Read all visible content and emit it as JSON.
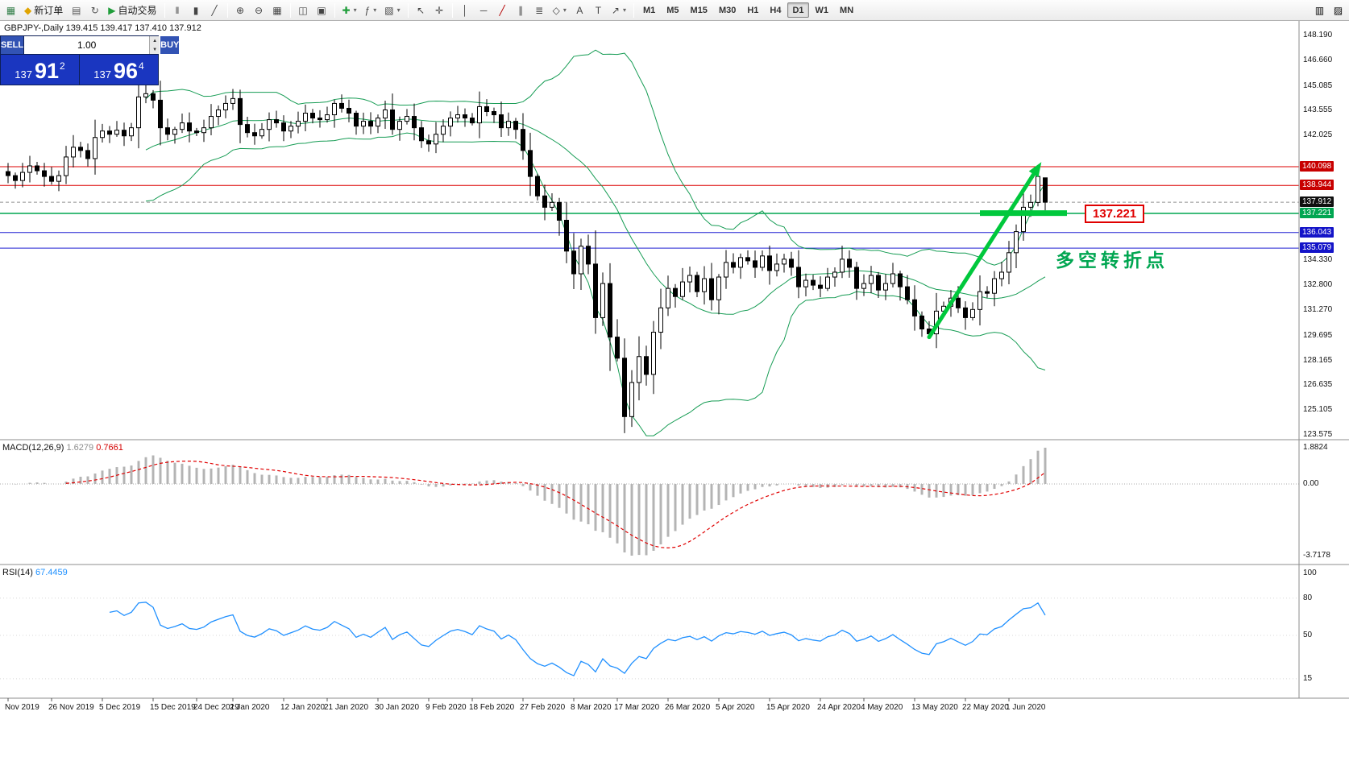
{
  "toolbar": {
    "items": [
      {
        "name": "new-chart",
        "glyph": "▦",
        "color": "#2f7d46"
      },
      {
        "name": "new-order",
        "glyph": "◆",
        "color": "#e0a400",
        "label": "新订单"
      },
      {
        "name": "profiles",
        "glyph": "▤",
        "color": "#555555"
      },
      {
        "name": "refresh",
        "glyph": "↻",
        "color": "#555555"
      },
      {
        "name": "autotrading",
        "glyph": "▶",
        "color": "#1f9d3a",
        "label": "自动交易"
      },
      {
        "sep": true
      },
      {
        "name": "bar-chart",
        "glyph": "‖",
        "color": "#444444"
      },
      {
        "name": "candlestick-chart",
        "glyph": "▮",
        "color": "#444444"
      },
      {
        "name": "line-chart",
        "glyph": "╱",
        "color": "#444444"
      },
      {
        "sep": true
      },
      {
        "name": "zoom-in",
        "glyph": "⊕",
        "color": "#444444"
      },
      {
        "name": "zoom-out",
        "glyph": "⊖",
        "color": "#444444"
      },
      {
        "name": "grid",
        "glyph": "▦",
        "color": "#444444"
      },
      {
        "sep": true
      },
      {
        "name": "tile-windows",
        "glyph": "◫",
        "color": "#444444"
      },
      {
        "name": "cascade-windows",
        "glyph": "▣",
        "color": "#444444"
      },
      {
        "sep": true
      },
      {
        "name": "quick-order",
        "glyph": "✚",
        "color": "#1f9d3a",
        "dropdown": true
      },
      {
        "name": "indicators",
        "glyph": "ƒ",
        "color": "#444444",
        "dropdown": true
      },
      {
        "name": "templates",
        "glyph": "▧",
        "color": "#444444",
        "dropdown": true
      },
      {
        "sep": true
      },
      {
        "name": "cursor",
        "glyph": "↖",
        "color": "#444444"
      },
      {
        "name": "crosshair",
        "glyph": "✛",
        "color": "#444444"
      },
      {
        "sep": true
      },
      {
        "name": "vertical-line",
        "glyph": "│",
        "color": "#444444"
      },
      {
        "name": "horizontal-line",
        "glyph": "─",
        "color": "#444444"
      },
      {
        "name": "trendline",
        "glyph": "╱",
        "color": "#b40000"
      },
      {
        "name": "equidistant-channel",
        "glyph": "∥",
        "color": "#444444"
      },
      {
        "name": "fibonacci",
        "glyph": "≣",
        "color": "#444444"
      },
      {
        "name": "shapes",
        "glyph": "◇",
        "color": "#444444",
        "dropdown": true
      },
      {
        "name": "text",
        "glyph": "A",
        "color": "#444444"
      },
      {
        "name": "text-label",
        "glyph": "T",
        "color": "#444444"
      },
      {
        "name": "arrows",
        "glyph": "↗",
        "color": "#444444",
        "dropdown": true
      },
      {
        "sep": true
      }
    ],
    "timeframes": [
      {
        "label": "M1"
      },
      {
        "label": "M5"
      },
      {
        "label": "M15"
      },
      {
        "label": "M30"
      },
      {
        "label": "H1"
      },
      {
        "label": "H4"
      },
      {
        "label": "D1",
        "active": true
      },
      {
        "label": "W1"
      },
      {
        "label": "MN"
      }
    ],
    "right_items": [
      {
        "name": "dock-left",
        "glyph": "▥"
      },
      {
        "name": "dock-right",
        "glyph": "▨"
      }
    ]
  },
  "chart": {
    "title": "GBPJPY-,Daily 139.415 139.417 137.410 137.912",
    "trade_panel": {
      "sell_label": "SELL",
      "buy_label": "BUY",
      "volume": "1.00",
      "sell_price": {
        "big": "137",
        "large": "91",
        "sup": "2"
      },
      "buy_price": {
        "big": "137",
        "large": "96",
        "sup": "4"
      }
    },
    "annotations": {
      "callout": "137.221",
      "turning_point": "多空转折点"
    }
  },
  "chart_data": {
    "type": "candlestick",
    "symbol": "GBPJPY-",
    "timeframe": "Daily",
    "last_bar": {
      "open": 139.415,
      "high": 139.417,
      "low": 137.41,
      "close": 137.912
    },
    "price_axis_labels": [
      "148.190",
      "146.660",
      "145.085",
      "143.555",
      "142.025",
      "134.330",
      "132.800",
      "131.270",
      "129.695",
      "128.165",
      "126.635",
      "125.105",
      "123.575"
    ],
    "price_tags": [
      {
        "price": 140.098,
        "text": "140.098",
        "color": "#c80000"
      },
      {
        "price": 138.944,
        "text": "138.944",
        "color": "#c80000"
      },
      {
        "price": 137.912,
        "text": "137.912",
        "color": "#101010"
      },
      {
        "price": 137.221,
        "text": "137.221",
        "color": "#00a651"
      },
      {
        "price": 136.043,
        "text": "136.043",
        "color": "#1414c8"
      },
      {
        "price": 135.079,
        "text": "135.079",
        "color": "#1414c8"
      }
    ],
    "hlines": [
      {
        "price": 140.098,
        "color": "#dc0000",
        "width": 1
      },
      {
        "price": 138.944,
        "color": "#dc0000",
        "width": 1
      },
      {
        "price": 137.221,
        "color": "#00a651",
        "width": 1.5
      },
      {
        "price": 136.043,
        "color": "#1e1ed2",
        "width": 1
      },
      {
        "price": 135.079,
        "color": "#1e1ed2",
        "width": 1
      }
    ],
    "current_price_line": {
      "price": 137.912,
      "color": "#909090"
    },
    "bollinger": {
      "period": 20,
      "deviation": 2,
      "color": "#169c54"
    },
    "candles": {
      "first_open": 139.8,
      "closes": [
        139.55,
        139.25,
        139.75,
        140.15,
        139.85,
        139.5,
        139.2,
        139.55,
        140.7,
        141.3,
        141.1,
        140.6,
        141.9,
        142.3,
        142.1,
        142.35,
        142.0,
        142.5,
        144.4,
        144.6,
        144.2,
        142.5,
        142.1,
        142.4,
        142.8,
        142.3,
        142.2,
        142.5,
        143.2,
        143.6,
        144.0,
        144.3,
        142.7,
        142.2,
        142.0,
        142.4,
        143.0,
        142.8,
        142.3,
        142.6,
        142.9,
        143.4,
        143.1,
        143.0,
        143.3,
        144.0,
        143.7,
        143.4,
        142.6,
        142.9,
        142.6,
        143.1,
        143.6,
        142.4,
        142.9,
        143.2,
        142.5,
        141.7,
        141.5,
        142.1,
        142.6,
        143.1,
        143.3,
        143.1,
        142.8,
        143.8,
        143.5,
        143.3,
        142.5,
        142.9,
        142.4,
        141.1,
        139.5,
        138.3,
        137.6,
        137.9,
        136.8,
        134.9,
        133.5,
        135.2,
        134.1,
        130.8,
        132.9,
        129.6,
        128.3,
        124.7,
        126.8,
        128.4,
        127.3,
        129.9,
        131.4,
        132.6,
        132.1,
        133.0,
        133.4,
        132.4,
        133.2,
        131.9,
        133.3,
        134.2,
        133.9,
        134.5,
        134.3,
        133.9,
        134.6,
        133.7,
        134.1,
        134.4,
        133.9,
        132.7,
        133.1,
        132.8,
        132.6,
        133.3,
        133.6,
        134.4,
        133.9,
        132.6,
        132.9,
        133.4,
        132.5,
        132.9,
        133.5,
        132.7,
        131.9,
        130.9,
        130.1,
        129.8,
        131.2,
        131.5,
        132.0,
        131.4,
        130.8,
        131.3,
        132.4,
        132.3,
        133.2,
        133.6,
        134.8,
        136.1,
        137.6,
        137.9,
        139.5,
        137.912
      ],
      "overrides": {
        "18": {
          "h": 145.6
        },
        "19": {
          "h": 147.9
        },
        "81": {
          "l": 129.8
        },
        "85": {
          "l": 123.68
        },
        "127": {
          "l": 129.55
        },
        "142": {
          "h": 140.1
        },
        "143": {
          "o": 139.415,
          "h": 139.417,
          "l": 137.41,
          "c": 137.912
        }
      }
    },
    "trend_arrow": {
      "from_index": 127,
      "from_price": 129.6,
      "to_index": 142,
      "to_price": 140.05,
      "color": "#00c83c"
    },
    "support_bar": {
      "from_index": 134,
      "to_index": 146,
      "price": 137.24,
      "color": "#00c83c"
    },
    "macd": {
      "label": "MACD(12,26,9)",
      "value_main": "1.6279",
      "value_signal": "0.7661",
      "bar_color": "#b4b4b4",
      "signal_color": "#e00000",
      "axis": [
        {
          "v": 1.8824,
          "t": "1.8824"
        },
        {
          "v": 0,
          "t": "0.00"
        },
        {
          "v": -3.7178,
          "t": "-3.7178"
        }
      ]
    },
    "rsi": {
      "label": "RSI(14)",
      "value": "67.4459",
      "color": "#2090ff",
      "axis": [
        {
          "v": 100,
          "t": "100"
        },
        {
          "v": 80,
          "t": "80"
        },
        {
          "v": 50,
          "t": "50"
        },
        {
          "v": 15,
          "t": "15"
        }
      ]
    },
    "date_labels": [
      {
        "t": "Nov 2019",
        "i": 0
      },
      {
        "t": "26 Nov 2019",
        "i": 6
      },
      {
        "t": "5 Dec 2019",
        "i": 13
      },
      {
        "t": "15 Dec 2019",
        "i": 20
      },
      {
        "t": "24 Dec 2019",
        "i": 26
      },
      {
        "t": "2 Jan 2020",
        "i": 31
      },
      {
        "t": "12 Jan 2020",
        "i": 38
      },
      {
        "t": "21 Jan 2020",
        "i": 44
      },
      {
        "t": "30 Jan 2020",
        "i": 51
      },
      {
        "t": "9 Feb 2020",
        "i": 58
      },
      {
        "t": "18 Feb 2020",
        "i": 64
      },
      {
        "t": "27 Feb 2020",
        "i": 71
      },
      {
        "t": "8 Mar 2020",
        "i": 78
      },
      {
        "t": "17 Mar 2020",
        "i": 84
      },
      {
        "t": "26 Mar 2020",
        "i": 91
      },
      {
        "t": "5 Apr 2020",
        "i": 98
      },
      {
        "t": "15 Apr 2020",
        "i": 105
      },
      {
        "t": "24 Apr 2020",
        "i": 112
      },
      {
        "t": "4 May 2020",
        "i": 118
      },
      {
        "t": "13 May 2020",
        "i": 125
      },
      {
        "t": "22 May 2020",
        "i": 132
      },
      {
        "t": "1 Jun 2020",
        "i": 138
      }
    ]
  }
}
